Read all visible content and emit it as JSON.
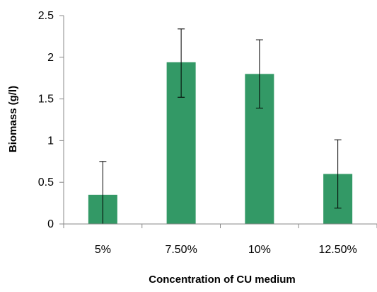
{
  "chart_data": {
    "type": "bar",
    "title": "",
    "xlabel": "Concentration of CU medium",
    "ylabel": "Biomass (g/l)",
    "categories": [
      "5%",
      "7.50%",
      "10%",
      "12.50%"
    ],
    "values": [
      0.35,
      1.94,
      1.8,
      0.6
    ],
    "error_low": [
      0.0,
      1.52,
      1.39,
      0.19
    ],
    "error_high": [
      0.75,
      2.34,
      2.21,
      1.01
    ],
    "ylim": [
      0,
      2.5
    ],
    "yticks": [
      0,
      0.5,
      1,
      1.5,
      2,
      2.5
    ],
    "ytick_labels": [
      "0",
      "0.5",
      "1",
      "1.5",
      "2",
      "2.5"
    ],
    "grid": false,
    "legend": "none",
    "bar_color": "#339966",
    "axis_color": "#888888",
    "error_bar_color": "#000000"
  }
}
